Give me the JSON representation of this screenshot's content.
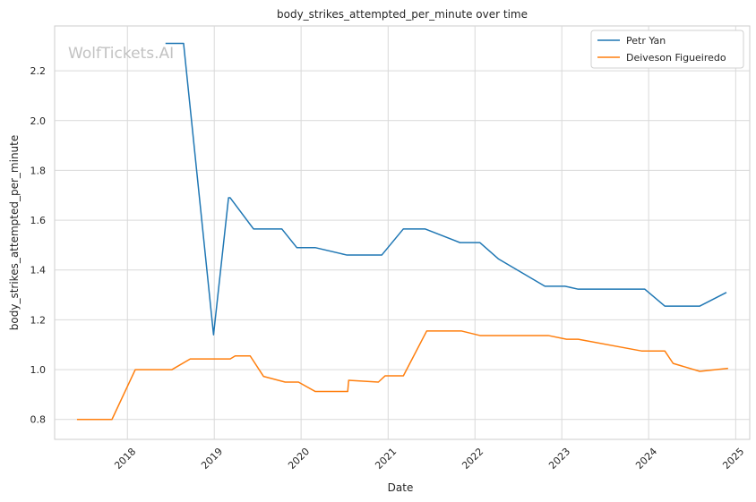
{
  "chart_data": {
    "type": "line",
    "title": "body_strikes_attempted_per_minute over time",
    "xlabel": "Date",
    "ylabel": "body_strikes_attempted_per_minute",
    "watermark": "WolfTickets.AI",
    "xlim": [
      "2017-03-01",
      "2025-03-01"
    ],
    "ylim": [
      0.72,
      2.38
    ],
    "x_ticks": [
      "2018-01-01",
      "2019-01-01",
      "2020-01-01",
      "2021-01-01",
      "2022-01-01",
      "2023-01-01",
      "2024-01-01",
      "2025-01-01"
    ],
    "x_tick_labels": [
      "2018",
      "2019",
      "2020",
      "2021",
      "2022",
      "2023",
      "2024",
      "2025"
    ],
    "y_ticks": [
      0.8,
      1.0,
      1.2,
      1.4,
      1.6,
      1.8,
      2.0,
      2.2
    ],
    "y_tick_labels": [
      "0.8",
      "1.0",
      "1.2",
      "1.4",
      "1.6",
      "1.8",
      "2.0",
      "2.2"
    ],
    "grid": true,
    "legend_position": "top-right",
    "series": [
      {
        "name": "Petr Yan",
        "color": "#1f77b4",
        "points": [
          [
            "2018-06-10",
            2.31
          ],
          [
            "2018-08-25",
            2.31
          ],
          [
            "2018-12-29",
            1.14
          ],
          [
            "2019-03-02",
            1.69
          ],
          [
            "2019-03-09",
            1.69
          ],
          [
            "2019-06-15",
            1.565
          ],
          [
            "2019-10-12",
            1.565
          ],
          [
            "2019-12-14",
            1.49
          ],
          [
            "2020-02-29",
            1.49
          ],
          [
            "2020-07-12",
            1.46
          ],
          [
            "2020-12-05",
            1.46
          ],
          [
            "2021-03-06",
            1.565
          ],
          [
            "2021-06-05",
            1.565
          ],
          [
            "2021-10-30",
            1.51
          ],
          [
            "2022-01-22",
            1.51
          ],
          [
            "2022-04-09",
            1.445
          ],
          [
            "2022-10-22",
            1.335
          ],
          [
            "2023-01-14",
            1.335
          ],
          [
            "2023-03-11",
            1.323
          ],
          [
            "2023-12-16",
            1.323
          ],
          [
            "2024-03-09",
            1.255
          ],
          [
            "2024-08-03",
            1.255
          ],
          [
            "2024-11-23",
            1.31
          ]
        ]
      },
      {
        "name": "Deiveson Figueiredo",
        "color": "#ff7f0e",
        "points": [
          [
            "2017-06-03",
            0.8
          ],
          [
            "2017-10-28",
            0.8
          ],
          [
            "2018-02-03",
            1.0
          ],
          [
            "2018-07-07",
            1.0
          ],
          [
            "2018-09-22",
            1.043
          ],
          [
            "2019-03-09",
            1.043
          ],
          [
            "2019-03-30",
            1.055
          ],
          [
            "2019-06-01",
            1.055
          ],
          [
            "2019-07-27",
            0.973
          ],
          [
            "2019-10-26",
            0.95
          ],
          [
            "2019-12-21",
            0.95
          ],
          [
            "2020-03-01",
            0.912
          ],
          [
            "2020-07-15",
            0.912
          ],
          [
            "2020-07-19",
            0.957
          ],
          [
            "2020-11-21",
            0.95
          ],
          [
            "2020-12-19",
            0.975
          ],
          [
            "2021-03-06",
            0.975
          ],
          [
            "2021-06-12",
            1.155
          ],
          [
            "2021-11-06",
            1.155
          ],
          [
            "2022-01-22",
            1.137
          ],
          [
            "2022-11-05",
            1.137
          ],
          [
            "2023-01-21",
            1.122
          ],
          [
            "2023-03-11",
            1.122
          ],
          [
            "2023-12-02",
            1.075
          ],
          [
            "2024-03-09",
            1.075
          ],
          [
            "2024-04-13",
            1.025
          ],
          [
            "2024-08-03",
            0.993
          ],
          [
            "2024-11-30",
            1.005
          ]
        ]
      }
    ]
  }
}
